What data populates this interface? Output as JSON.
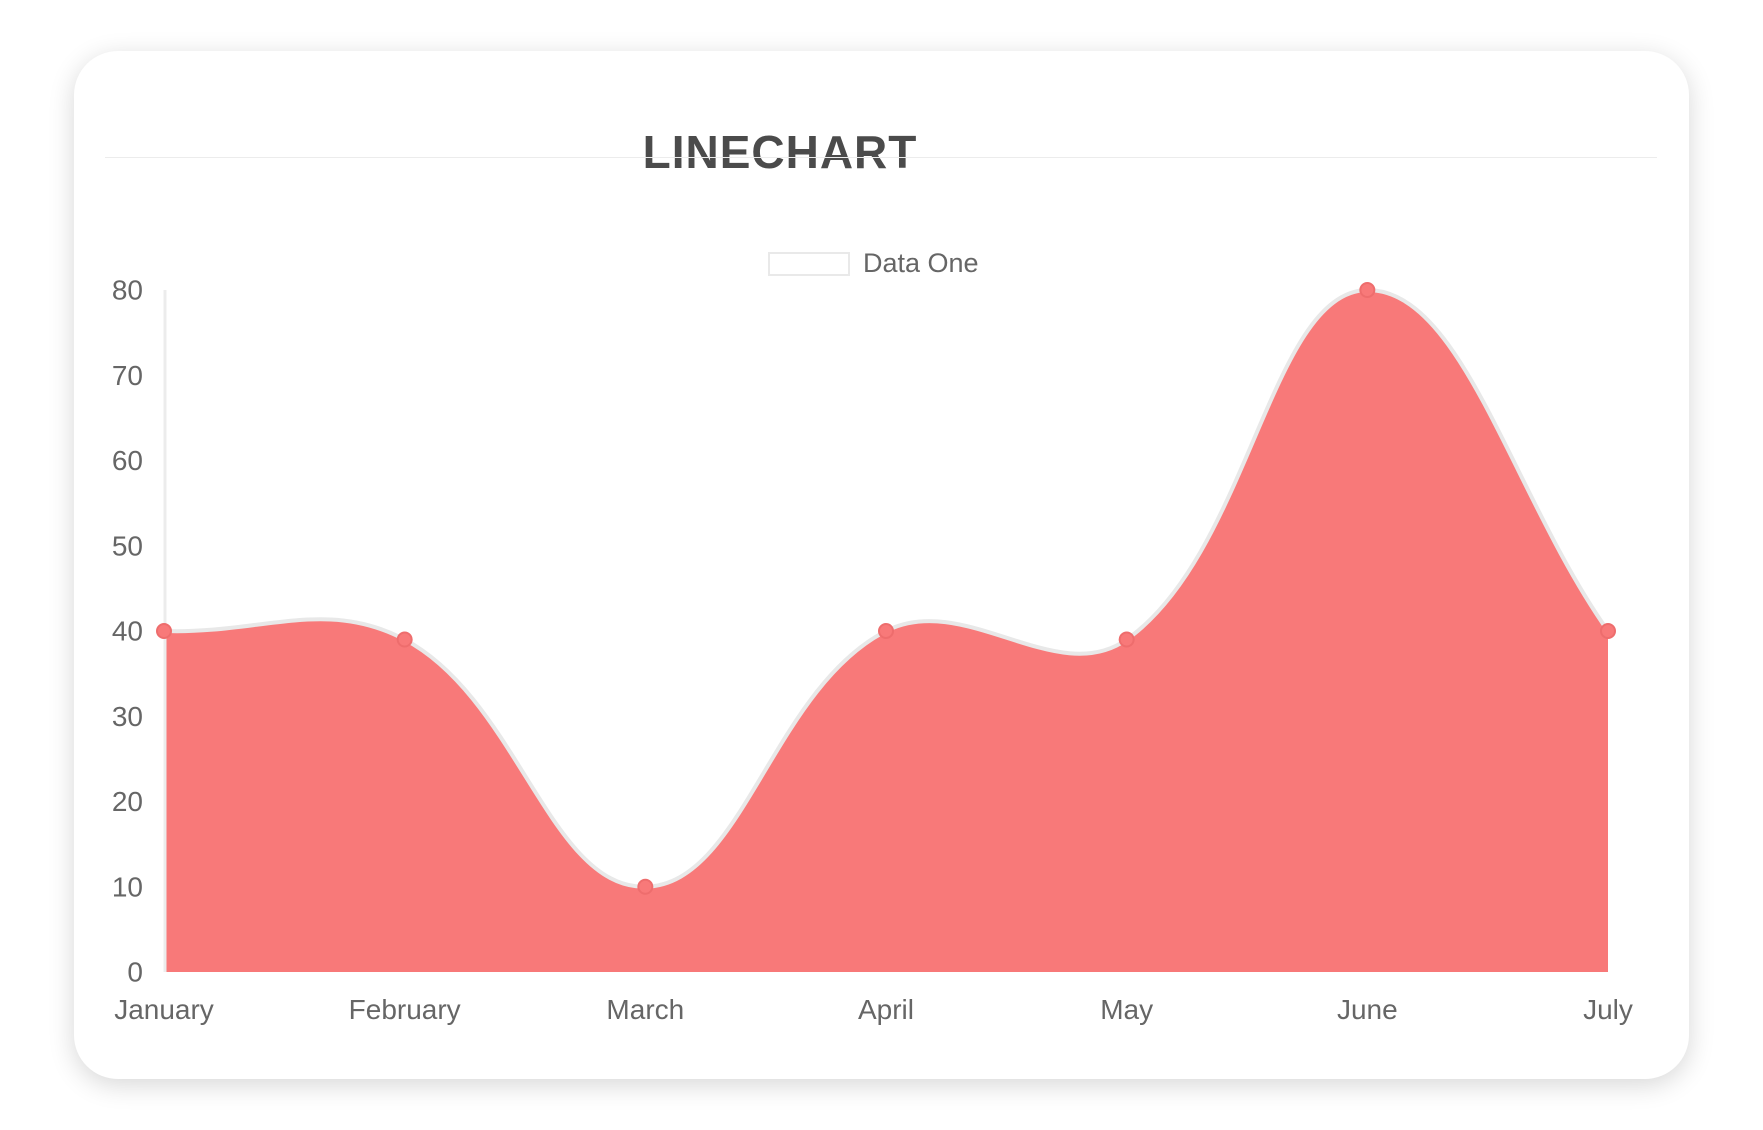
{
  "card": {
    "background": "#ffffff"
  },
  "chart_data": {
    "type": "area",
    "title": "LINECHART",
    "categories": [
      "January",
      "February",
      "March",
      "April",
      "May",
      "June",
      "July"
    ],
    "series": [
      {
        "name": "Data One",
        "values": [
          40,
          39,
          10,
          40,
          39,
          80,
          40
        ],
        "color": "#f87979",
        "point_border_color": "#ee6d6d",
        "line_color": "#e8e8e8"
      }
    ],
    "ylim": [
      0,
      80
    ],
    "yticks": [
      0,
      10,
      20,
      30,
      40,
      50,
      60,
      70,
      80
    ],
    "legend_position": "top",
    "grid": false,
    "axis_line_color": "#ececec",
    "tick_label_color": "#666666",
    "title_color": "#4b4b4b"
  }
}
